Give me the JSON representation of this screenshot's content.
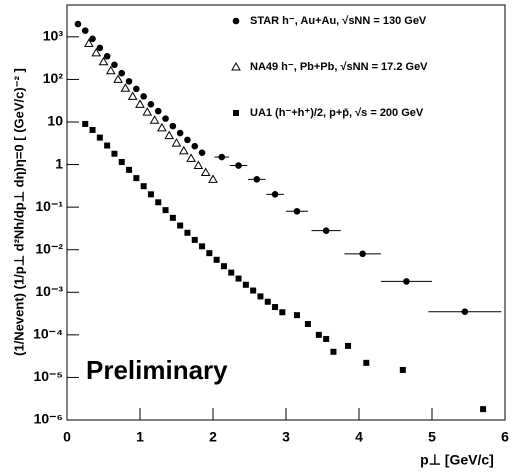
{
  "chart_data": {
    "type": "scatter",
    "xlabel": "p⊥ [GeV/c]",
    "ylabel": "(1/Nevent) (1/p⊥ d²Nh/dp⊥ dη)η=0 [ (GeV/c)⁻² ]",
    "annotation": "Preliminary",
    "log_y": true,
    "xlim": [
      0,
      6
    ],
    "xticks": [
      0,
      1,
      2,
      3,
      4,
      5,
      6
    ],
    "ylim": [
      1e-06,
      5600
    ],
    "yticks": [
      {
        "value": 1e-06,
        "label": "10⁻⁶"
      },
      {
        "value": 1e-05,
        "label": "10⁻⁵"
      },
      {
        "value": 0.0001,
        "label": "10⁻⁴"
      },
      {
        "value": 0.001,
        "label": "10⁻³"
      },
      {
        "value": 0.01,
        "label": "10⁻²"
      },
      {
        "value": 0.1,
        "label": "10⁻¹"
      },
      1,
      10,
      {
        "value": 100,
        "label": "10²"
      },
      {
        "value": 1000,
        "label": "10³"
      }
    ],
    "series": [
      {
        "name": "STAR h⁻, Au+Au, √sNN = 130 GeV",
        "color": "#000000",
        "marker": "circle",
        "x": [
          0.15,
          0.25,
          0.35,
          0.45,
          0.55,
          0.65,
          0.75,
          0.85,
          0.95,
          1.05,
          1.15,
          1.25,
          1.35,
          1.45,
          1.55,
          1.65,
          1.75,
          1.85,
          2.12,
          2.35,
          2.6,
          2.85,
          3.15,
          3.55,
          4.05,
          4.65,
          5.45
        ],
        "values": [
          2000,
          1400,
          900,
          550,
          350,
          220,
          140,
          90,
          60,
          40,
          26,
          18,
          12,
          8,
          5.5,
          3.8,
          2.7,
          1.9,
          1.5,
          0.95,
          0.45,
          0.2,
          0.08,
          0.028,
          0.008,
          0.0018,
          0.00035
        ],
        "xerr": [
          null,
          null,
          null,
          null,
          null,
          null,
          null,
          null,
          null,
          null,
          null,
          null,
          null,
          null,
          null,
          null,
          null,
          null,
          0.1,
          0.12,
          0.12,
          0.12,
          0.15,
          0.2,
          0.25,
          0.35,
          0.5
        ]
      },
      {
        "name": "NA49 h⁻, Pb+Pb, √sNN = 17.2 GeV",
        "color": "#000000",
        "marker": "triangle",
        "x": [
          0.3,
          0.4,
          0.5,
          0.6,
          0.7,
          0.8,
          0.9,
          1.0,
          1.1,
          1.2,
          1.3,
          1.4,
          1.5,
          1.6,
          1.7,
          1.8,
          1.9,
          2.0
        ],
        "values": [
          700,
          420,
          260,
          160,
          100,
          62,
          40,
          26,
          17,
          11,
          7.3,
          4.8,
          3.2,
          2.1,
          1.4,
          0.95,
          0.65,
          0.45
        ]
      },
      {
        "name": "UA1 (h⁻+h⁺)/2, p+p̄, √s = 200 GeV",
        "color": "#000000",
        "marker": "square",
        "x": [
          0.25,
          0.35,
          0.45,
          0.55,
          0.65,
          0.75,
          0.85,
          0.95,
          1.05,
          1.15,
          1.25,
          1.35,
          1.45,
          1.55,
          1.65,
          1.75,
          1.85,
          1.95,
          2.05,
          2.15,
          2.25,
          2.35,
          2.45,
          2.55,
          2.65,
          2.75,
          2.85,
          2.95,
          3.15,
          3.3,
          3.45,
          3.55,
          3.65,
          3.85,
          4.1,
          4.6,
          5.7
        ],
        "values": [
          9,
          6.5,
          4.3,
          2.8,
          1.8,
          1.15,
          0.75,
          0.48,
          0.31,
          0.2,
          0.13,
          0.085,
          0.056,
          0.037,
          0.025,
          0.017,
          0.012,
          0.0083,
          0.0058,
          0.0041,
          0.0029,
          0.0021,
          0.0015,
          0.0011,
          0.0008,
          0.0006,
          0.00045,
          0.00034,
          0.00029,
          0.00018,
          0.0001,
          8e-05,
          4e-05,
          5.5e-05,
          2.2e-05,
          1.5e-05,
          1.8e-06
        ]
      }
    ]
  }
}
